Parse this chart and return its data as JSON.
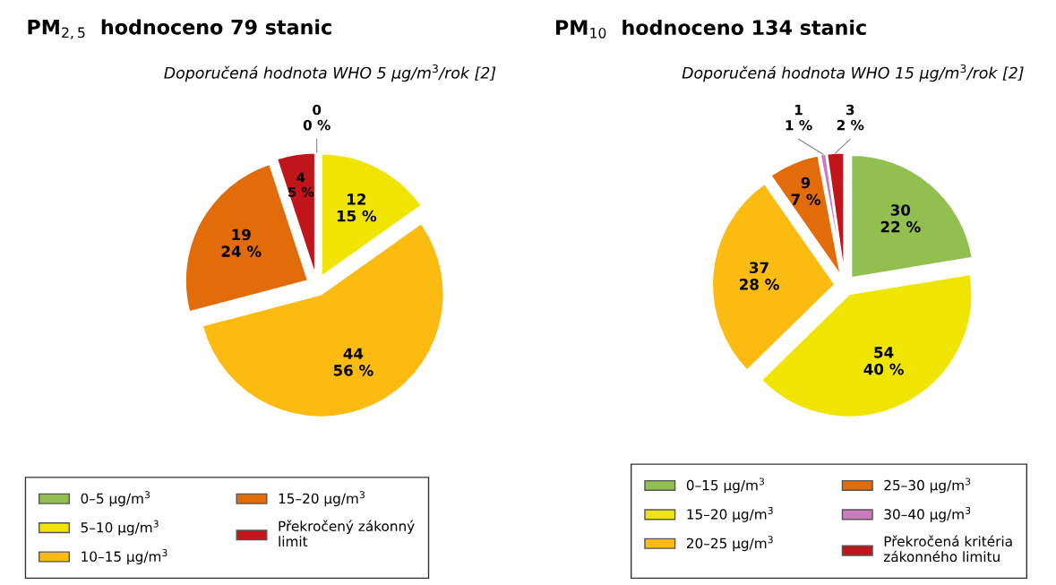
{
  "chart_data": [
    {
      "type": "pie",
      "title": "PM$_{2,5}$  hodnoceno 79 stanic",
      "subtitle": "Doporučená hodnota WHO 5 µg/m$^{3}$/rok [2]",
      "categories": [
        "0–5 µg/m$^{3}$",
        "5–10 µg/m$^{3}$",
        "10–15 µg/m$^{3}$",
        "15–20 µg/m$^{3}$",
        "Překročený zákonný\nlimit"
      ],
      "values": [
        0,
        12,
        44,
        19,
        4
      ],
      "colors": [
        "#92c050",
        "#f0e500",
        "#fbbb10",
        "#e36c0a",
        "#c0151b"
      ],
      "value_labels": [
        "0\n0 %",
        "12\n15 %",
        "44\n56 %",
        "19\n24 %",
        "4\n5 %"
      ],
      "legend": "bottom"
    },
    {
      "type": "pie",
      "title": "PM$_{10}$  hodnoceno 134 stanic",
      "subtitle": "Doporučená hodnota WHO 15 µg/m$^{3}$/rok [2]",
      "categories": [
        "0–15 µg/m$^{3}$",
        "15–20 µg/m$^{3}$",
        "20–25 µg/m$^{3}$",
        "25–30 µg/m$^{3}$",
        "30–40 µg/m$^{3}$",
        "Překročená kritéria\nzákonného limitu"
      ],
      "values": [
        30,
        54,
        37,
        9,
        1,
        3
      ],
      "colors": [
        "#92c050",
        "#f0e500",
        "#fbbb10",
        "#e36c0a",
        "#cc7bbd",
        "#c0151b"
      ],
      "value_labels": [
        "30\n22 %",
        "54\n40 %",
        "37\n28 %",
        "9\n7 %",
        "1\n1 %",
        "3\n2 %"
      ],
      "legend": "bottom"
    }
  ]
}
